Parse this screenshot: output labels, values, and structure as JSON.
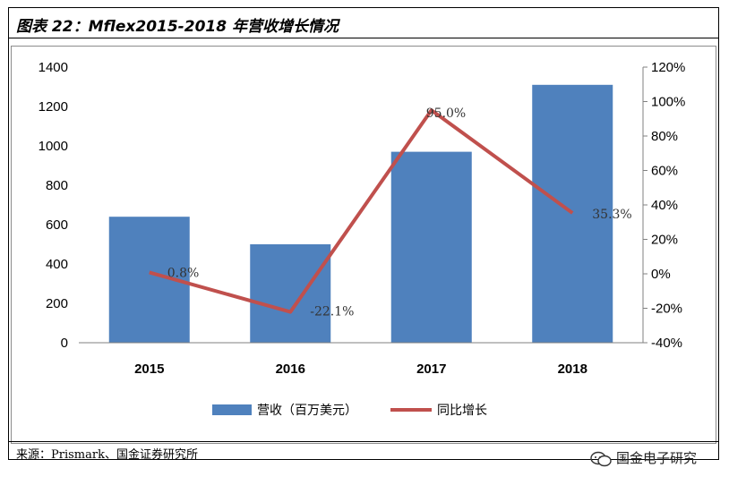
{
  "header": {
    "title": "图表 22：Mflex2015-2018 年营收增长情况"
  },
  "footer": {
    "source": "来源：Prismark、国金证券研究所",
    "watermark": "国金电子研究"
  },
  "colors": {
    "bar": "#4F81BD",
    "line": "#C0504D",
    "axis": "#808080"
  },
  "chart_data": {
    "type": "bar",
    "title": "Mflex2015-2018 年营收增长情况",
    "categories": [
      "2015",
      "2016",
      "2017",
      "2018"
    ],
    "series": [
      {
        "name": "营收（百万美元）",
        "type": "bar",
        "axis": "left",
        "values": [
          640,
          500,
          970,
          1310
        ]
      },
      {
        "name": "同比增长",
        "type": "line",
        "axis": "right",
        "values": [
          0.8,
          -22.1,
          95.0,
          35.3
        ],
        "labels": [
          "0.8%",
          "-22.1%",
          "95.0%",
          "35.3%"
        ]
      }
    ],
    "left_axis": {
      "ylim": [
        0,
        1400
      ],
      "ticks": [
        0,
        200,
        400,
        600,
        800,
        1000,
        1200,
        1400
      ],
      "tick_labels": [
        "0",
        "200",
        "400",
        "600",
        "800",
        "1000",
        "1200",
        "1400"
      ]
    },
    "right_axis": {
      "ylim": [
        -40,
        120
      ],
      "ticks": [
        -40,
        -20,
        0,
        20,
        40,
        60,
        80,
        100,
        120
      ],
      "tick_labels": [
        "-40%",
        "-20%",
        "0%",
        "20%",
        "40%",
        "60%",
        "80%",
        "100%",
        "120%"
      ]
    },
    "legend": [
      "营收（百万美元）",
      "同比增长"
    ],
    "legend_position": "bottom",
    "grid": false
  }
}
